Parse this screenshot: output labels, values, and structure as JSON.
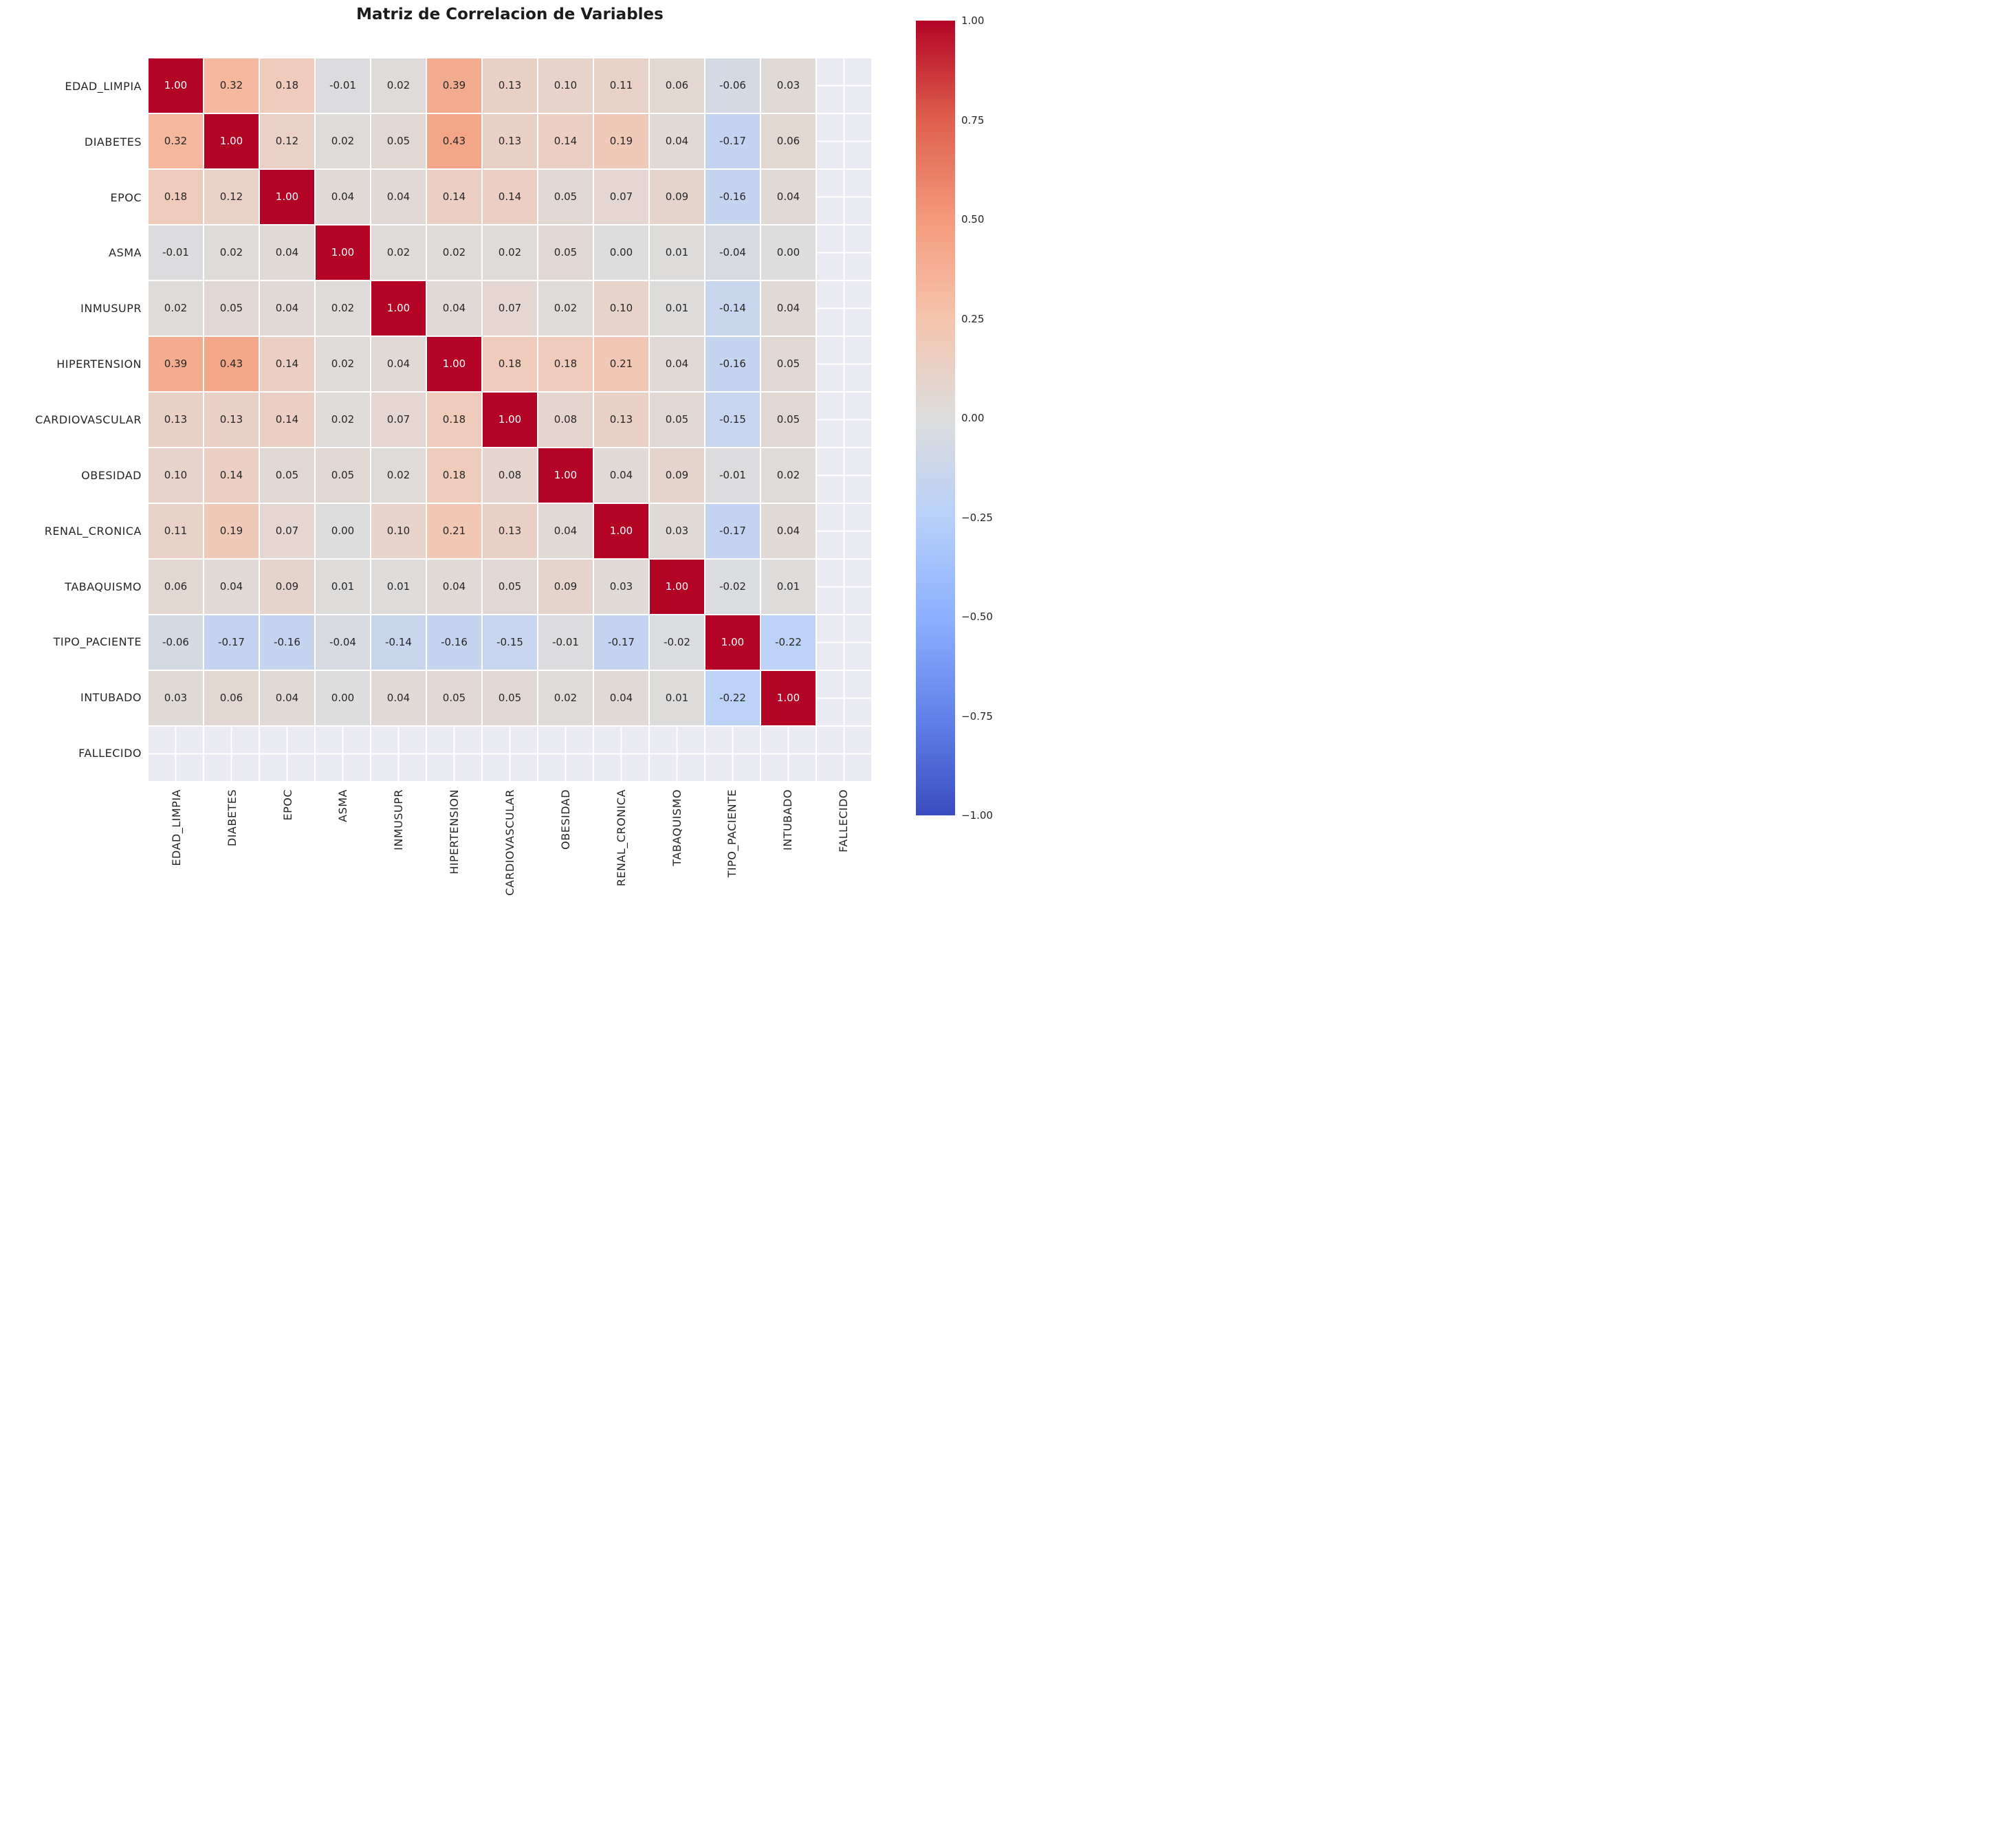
{
  "figure": {
    "background": "#ffffff",
    "axes_background": "#eaeaf2",
    "grid_line_color": "#ffffff",
    "text_color": "#262626"
  },
  "chart_data": {
    "type": "heatmap",
    "title": "Matriz de Correlacion de Variables",
    "variables": [
      "EDAD_LIMPIA",
      "DIABETES",
      "EPOC",
      "ASMA",
      "INMUSUPR",
      "HIPERTENSION",
      "CARDIOVASCULAR",
      "OBESIDAD",
      "RENAL_CRONICA",
      "TABAQUISMO",
      "TIPO_PACIENTE",
      "INTUBADO",
      "FALLECIDO"
    ],
    "matrix": [
      [
        1.0,
        0.32,
        0.18,
        -0.01,
        0.02,
        0.39,
        0.13,
        0.1,
        0.11,
        0.06,
        -0.06,
        0.03,
        null
      ],
      [
        0.32,
        1.0,
        0.12,
        0.02,
        0.05,
        0.43,
        0.13,
        0.14,
        0.19,
        0.04,
        -0.17,
        0.06,
        null
      ],
      [
        0.18,
        0.12,
        1.0,
        0.04,
        0.04,
        0.14,
        0.14,
        0.05,
        0.07,
        0.09,
        -0.16,
        0.04,
        null
      ],
      [
        -0.01,
        0.02,
        0.04,
        1.0,
        0.02,
        0.02,
        0.02,
        0.05,
        0.0,
        0.01,
        -0.04,
        0.0,
        null
      ],
      [
        0.02,
        0.05,
        0.04,
        0.02,
        1.0,
        0.04,
        0.07,
        0.02,
        0.1,
        0.01,
        -0.14,
        0.04,
        null
      ],
      [
        0.39,
        0.43,
        0.14,
        0.02,
        0.04,
        1.0,
        0.18,
        0.18,
        0.21,
        0.04,
        -0.16,
        0.05,
        null
      ],
      [
        0.13,
        0.13,
        0.14,
        0.02,
        0.07,
        0.18,
        1.0,
        0.08,
        0.13,
        0.05,
        -0.15,
        0.05,
        null
      ],
      [
        0.1,
        0.14,
        0.05,
        0.05,
        0.02,
        0.18,
        0.08,
        1.0,
        0.04,
        0.09,
        -0.01,
        0.02,
        null
      ],
      [
        0.11,
        0.19,
        0.07,
        0.0,
        0.1,
        0.21,
        0.13,
        0.04,
        1.0,
        0.03,
        -0.17,
        0.04,
        null
      ],
      [
        0.06,
        0.04,
        0.09,
        0.01,
        0.01,
        0.04,
        0.05,
        0.09,
        0.03,
        1.0,
        -0.02,
        0.01,
        null
      ],
      [
        -0.06,
        -0.17,
        -0.16,
        -0.04,
        -0.14,
        -0.16,
        -0.15,
        -0.01,
        -0.17,
        -0.02,
        1.0,
        -0.22,
        null
      ],
      [
        0.03,
        0.06,
        0.04,
        0.0,
        0.04,
        0.05,
        0.05,
        0.02,
        0.04,
        0.01,
        -0.22,
        1.0,
        null
      ],
      [
        null,
        null,
        null,
        null,
        null,
        null,
        null,
        null,
        null,
        null,
        null,
        null,
        null
      ]
    ],
    "vmin": -1,
    "vmax": 1,
    "value_decimals": 2,
    "colormap": "coolwarm",
    "colormap_anchors": [
      "#3b4cc0",
      "#6282ea",
      "#8db0fe",
      "#b8d0f9",
      "#dddddd",
      "#f5c4ad",
      "#f49a7b",
      "#de604d",
      "#b40426"
    ],
    "annotation_color": "#262626",
    "annotation_color_dark_bg": "#ffffff",
    "grid_on": true,
    "legend_position": "right",
    "colorbar": {
      "tick_labels": [
        "1.00",
        "0.75",
        "0.50",
        "0.25",
        "0.00",
        "−0.25",
        "−0.50",
        "−0.75",
        "−1.00"
      ]
    }
  }
}
